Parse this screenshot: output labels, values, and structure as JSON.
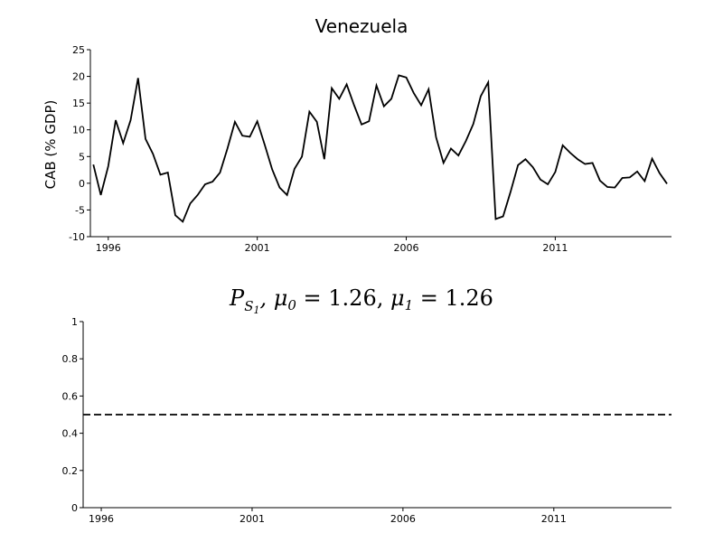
{
  "chart_data": [
    {
      "type": "line",
      "title": "Venezuela",
      "xlabel": "",
      "ylabel": "CAB (% GDP)",
      "xlim": [
        1995.4,
        2014.9
      ],
      "ylim": [
        -10,
        25
      ],
      "xticks": [
        1996,
        2001,
        2006,
        2011
      ],
      "yticks": [
        -10,
        -5,
        0,
        5,
        10,
        15,
        20,
        25
      ],
      "grid": false,
      "series": [
        {
          "x": [
            1995.5,
            1995.75,
            1996.0,
            1996.25,
            1996.5,
            1996.75,
            1997.0,
            1997.25,
            1997.5,
            1997.75,
            1998.0,
            1998.25,
            1998.5,
            1998.75,
            1999.0,
            1999.25,
            1999.5,
            1999.75,
            2000.0,
            2000.25,
            2000.5,
            2000.75,
            2001.0,
            2001.25,
            2001.5,
            2001.75,
            2002.0,
            2002.25,
            2002.5,
            2002.75,
            2003.0,
            2003.25,
            2003.5,
            2003.75,
            2004.0,
            2004.25,
            2004.5,
            2004.75,
            2005.0,
            2005.25,
            2005.5,
            2005.75,
            2006.0,
            2006.25,
            2006.5,
            2006.75,
            2007.0,
            2007.25,
            2007.5,
            2007.75,
            2008.0,
            2008.25,
            2008.5,
            2008.75,
            2009.0,
            2009.25,
            2009.5,
            2009.75,
            2010.0,
            2010.25,
            2010.5,
            2010.75,
            2011.0,
            2011.25,
            2011.5,
            2011.75,
            2012.0,
            2012.25,
            2012.5,
            2012.75,
            2013.0,
            2013.25,
            2013.5,
            2013.75,
            2014.0,
            2014.25,
            2014.5,
            2014.75
          ],
          "y": [
            3.5,
            -2.2,
            3.2,
            11.8,
            7.5,
            11.8,
            19.7,
            8.3,
            5.5,
            1.6,
            2.0,
            -6.0,
            -7.2,
            -3.8,
            -2.2,
            -0.2,
            0.3,
            2.0,
            6.5,
            11.5,
            8.9,
            8.7,
            11.6,
            7.2,
            2.6,
            -0.8,
            -2.2,
            2.7,
            5.0,
            13.4,
            11.5,
            4.5,
            17.8,
            15.8,
            18.5,
            14.6,
            11.0,
            11.6,
            18.3,
            14.4,
            15.8,
            20.2,
            19.8,
            16.9,
            14.6,
            17.6,
            8.6,
            3.8,
            6.5,
            5.2,
            7.9,
            11.1,
            16.3,
            18.9,
            -6.7,
            -6.2,
            -1.6,
            3.4,
            4.5,
            3.0,
            0.7,
            -0.2,
            2.1,
            7.1,
            5.7,
            4.5,
            3.6,
            3.8,
            0.5,
            -0.7,
            -0.8,
            1.0,
            1.1,
            2.2,
            0.4,
            4.6,
            1.9,
            -0.1
          ]
        }
      ]
    },
    {
      "type": "line",
      "title": "P_{S_1}, μ_0 = 1.26, μ_1 = 1.26",
      "title_parts": {
        "P": "P",
        "sub": "S",
        "subsub": "1",
        "mu": "μ",
        "mu0_sub": "0",
        "mu1_sub": "1",
        "equals0": " = 1.26, ",
        "equals1": " = 1.26",
        "comma": ", "
      },
      "xlabel": "",
      "ylabel": "",
      "xlim": [
        1995.4,
        2014.9
      ],
      "ylim": [
        0,
        1
      ],
      "xticks": [
        1996,
        2001,
        2006,
        2011
      ],
      "yticks": [
        0,
        0.2,
        0.4,
        0.6,
        0.8,
        1
      ],
      "ytick_labels": [
        "0",
        "0.2",
        "0.4",
        "0.6",
        "0.8",
        "1"
      ],
      "grid": false,
      "series": [
        {
          "style": "dashed",
          "x": [
            1995.4,
            2014.9
          ],
          "y": [
            0.5,
            0.5
          ]
        }
      ]
    }
  ]
}
